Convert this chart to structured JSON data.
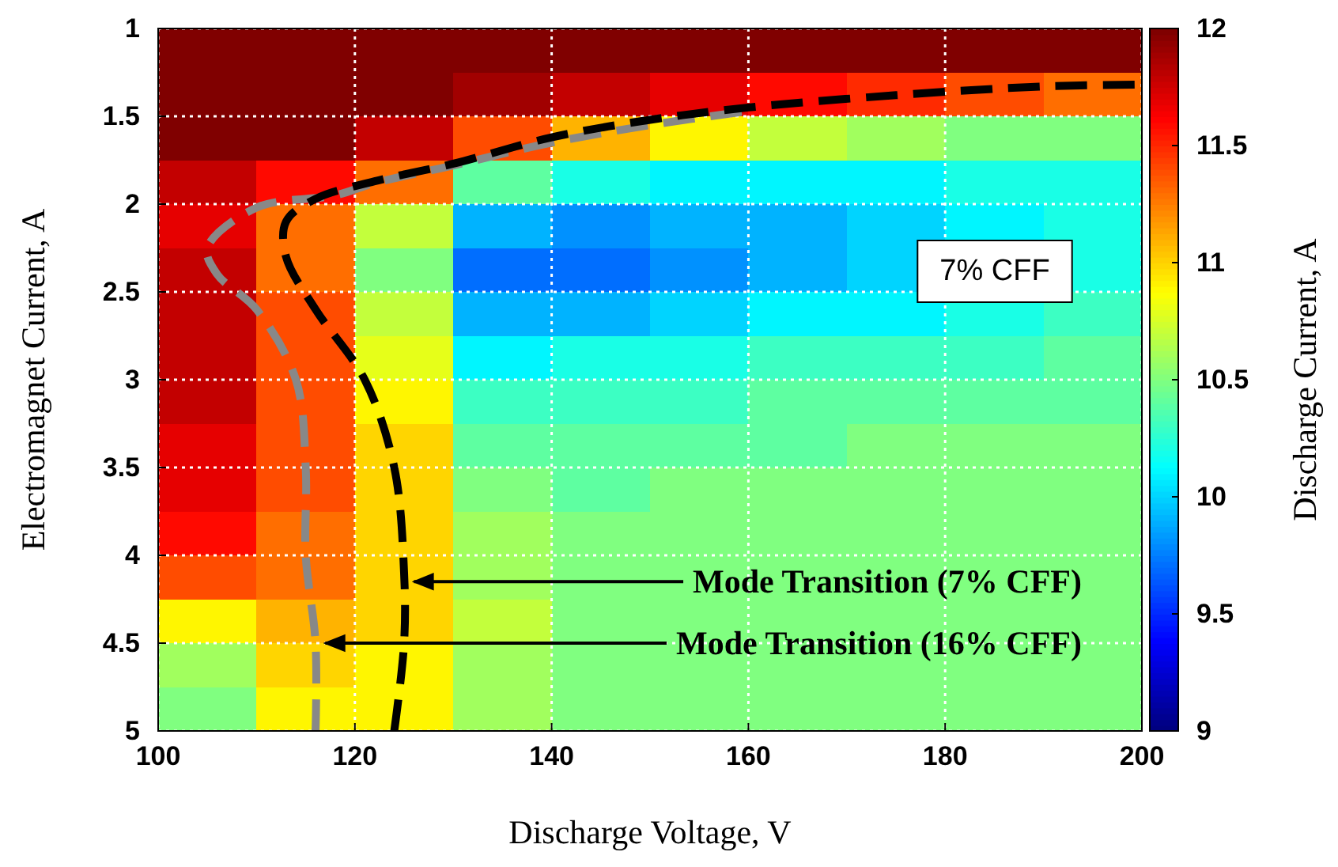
{
  "chart_data": {
    "type": "heatmap",
    "xlabel": "Discharge Voltage, V",
    "ylabel": "Electromagnet Current, A",
    "clabel": "Discharge Current, A",
    "x": [
      105,
      115,
      125,
      135,
      145,
      155,
      165,
      175,
      185,
      195
    ],
    "xlim": [
      100,
      200
    ],
    "xticks": [
      100,
      120,
      140,
      160,
      180,
      200
    ],
    "ylim": [
      5,
      1
    ],
    "yticks": [
      1,
      1.5,
      2,
      2.5,
      3,
      3.5,
      4,
      4.5,
      5
    ],
    "clim": [
      9,
      12
    ],
    "cticks": [
      9,
      9.5,
      10,
      10.5,
      11,
      11.5,
      12
    ],
    "grid": true,
    "cells": [
      [
        12,
        12,
        12,
        12,
        12,
        12,
        12,
        12,
        12,
        12
      ],
      [
        12,
        12,
        12,
        11.9,
        11.8,
        11.7,
        11.6,
        11.5,
        11.4,
        11.3
      ],
      [
        12,
        12,
        11.8,
        11.4,
        11.1,
        10.9,
        10.7,
        10.6,
        10.5,
        10.5
      ],
      [
        11.8,
        11.6,
        11.3,
        10.4,
        10.2,
        10.1,
        10.1,
        10.1,
        10.2,
        10.2
      ],
      [
        11.7,
        11.3,
        10.7,
        9.9,
        9.8,
        9.9,
        9.9,
        10,
        10.1,
        10.2
      ],
      [
        11.8,
        11.3,
        10.5,
        9.7,
        9.7,
        9.8,
        9.9,
        10,
        null,
        10.2
      ],
      [
        11.8,
        11.4,
        10.7,
        9.9,
        9.9,
        10,
        10.1,
        10.1,
        10.2,
        10.3
      ],
      [
        11.8,
        11.4,
        10.8,
        10.1,
        10.2,
        10.2,
        10.3,
        10.3,
        10.3,
        10.4
      ],
      [
        11.8,
        11.4,
        10.9,
        10.3,
        10.3,
        10.3,
        10.4,
        10.4,
        10.4,
        10.4
      ],
      [
        11.7,
        11.4,
        11,
        10.4,
        10.4,
        10.4,
        10.4,
        10.5,
        10.5,
        10.5
      ],
      [
        11.7,
        11.4,
        11,
        10.5,
        10.4,
        10.5,
        10.5,
        10.5,
        10.5,
        10.5
      ],
      [
        11.6,
        11.3,
        11,
        10.6,
        10.5,
        10.5,
        10.5,
        10.5,
        10.5,
        10.5
      ],
      [
        11.4,
        11.3,
        11,
        10.6,
        10.5,
        10.5,
        10.5,
        10.5,
        10.5,
        10.5
      ],
      [
        10.9,
        11.1,
        11,
        10.7,
        10.5,
        10.5,
        10.5,
        10.5,
        10.5,
        10.5
      ],
      [
        10.6,
        11,
        10.9,
        10.6,
        10.5,
        10.5,
        10.5,
        10.5,
        10.5,
        10.5
      ],
      [
        10.5,
        10.9,
        10.9,
        10.6,
        10.5,
        10.5,
        10.5,
        10.5,
        10.5,
        10.5
      ]
    ],
    "series": [
      {
        "type": "line",
        "color": "#888888",
        "line_style": "dashed",
        "x": [
          116,
          116,
          115,
          115,
          114,
          110,
          106,
          105,
          110,
          118,
          122,
          130,
          140,
          150,
          160
        ],
        "values": [
          5,
          4.5,
          4,
          3.5,
          3,
          2.6,
          2.4,
          2.25,
          2.02,
          1.95,
          1.88,
          1.78,
          1.65,
          1.55,
          1.47
        ]
      },
      {
        "type": "line",
        "color": "#000000",
        "line_style": "dashed",
        "x": [
          124,
          125,
          125,
          124,
          121,
          116,
          113,
          113,
          116,
          122,
          130,
          140,
          150,
          160,
          175,
          190,
          200
        ],
        "values": [
          5,
          4.5,
          4.1,
          3.5,
          3,
          2.6,
          2.3,
          2.1,
          1.97,
          1.87,
          1.77,
          1.62,
          1.52,
          1.45,
          1.38,
          1.33,
          1.32
        ]
      }
    ],
    "annotations": [
      {
        "text": "Mode Transition (7% CFF)",
        "x": 126,
        "y": 4.15
      },
      {
        "text": "Mode Transition (16% CFF)",
        "x": 117,
        "y": 4.5
      },
      "7% CFF"
    ]
  }
}
